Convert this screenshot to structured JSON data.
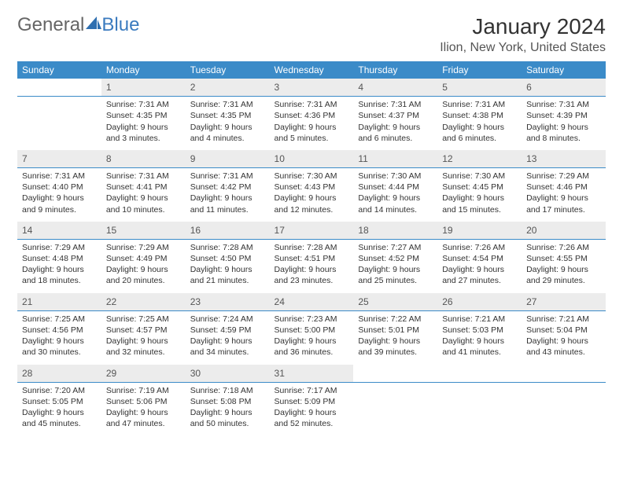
{
  "logo": {
    "text_general": "General",
    "text_blue": "Blue"
  },
  "title": "January 2024",
  "location": "Ilion, New York, United States",
  "colors": {
    "header_bg": "#3b8bc8",
    "header_text": "#ffffff",
    "daynum_bg": "#ececec",
    "rule": "#3b8bc8"
  },
  "day_headers": [
    "Sunday",
    "Monday",
    "Tuesday",
    "Wednesday",
    "Thursday",
    "Friday",
    "Saturday"
  ],
  "weeks": [
    [
      {
        "n": "",
        "sr": "",
        "ss": "",
        "dl": ""
      },
      {
        "n": "1",
        "sr": "Sunrise: 7:31 AM",
        "ss": "Sunset: 4:35 PM",
        "dl": "Daylight: 9 hours and 3 minutes."
      },
      {
        "n": "2",
        "sr": "Sunrise: 7:31 AM",
        "ss": "Sunset: 4:35 PM",
        "dl": "Daylight: 9 hours and 4 minutes."
      },
      {
        "n": "3",
        "sr": "Sunrise: 7:31 AM",
        "ss": "Sunset: 4:36 PM",
        "dl": "Daylight: 9 hours and 5 minutes."
      },
      {
        "n": "4",
        "sr": "Sunrise: 7:31 AM",
        "ss": "Sunset: 4:37 PM",
        "dl": "Daylight: 9 hours and 6 minutes."
      },
      {
        "n": "5",
        "sr": "Sunrise: 7:31 AM",
        "ss": "Sunset: 4:38 PM",
        "dl": "Daylight: 9 hours and 6 minutes."
      },
      {
        "n": "6",
        "sr": "Sunrise: 7:31 AM",
        "ss": "Sunset: 4:39 PM",
        "dl": "Daylight: 9 hours and 8 minutes."
      }
    ],
    [
      {
        "n": "7",
        "sr": "Sunrise: 7:31 AM",
        "ss": "Sunset: 4:40 PM",
        "dl": "Daylight: 9 hours and 9 minutes."
      },
      {
        "n": "8",
        "sr": "Sunrise: 7:31 AM",
        "ss": "Sunset: 4:41 PM",
        "dl": "Daylight: 9 hours and 10 minutes."
      },
      {
        "n": "9",
        "sr": "Sunrise: 7:31 AM",
        "ss": "Sunset: 4:42 PM",
        "dl": "Daylight: 9 hours and 11 minutes."
      },
      {
        "n": "10",
        "sr": "Sunrise: 7:30 AM",
        "ss": "Sunset: 4:43 PM",
        "dl": "Daylight: 9 hours and 12 minutes."
      },
      {
        "n": "11",
        "sr": "Sunrise: 7:30 AM",
        "ss": "Sunset: 4:44 PM",
        "dl": "Daylight: 9 hours and 14 minutes."
      },
      {
        "n": "12",
        "sr": "Sunrise: 7:30 AM",
        "ss": "Sunset: 4:45 PM",
        "dl": "Daylight: 9 hours and 15 minutes."
      },
      {
        "n": "13",
        "sr": "Sunrise: 7:29 AM",
        "ss": "Sunset: 4:46 PM",
        "dl": "Daylight: 9 hours and 17 minutes."
      }
    ],
    [
      {
        "n": "14",
        "sr": "Sunrise: 7:29 AM",
        "ss": "Sunset: 4:48 PM",
        "dl": "Daylight: 9 hours and 18 minutes."
      },
      {
        "n": "15",
        "sr": "Sunrise: 7:29 AM",
        "ss": "Sunset: 4:49 PM",
        "dl": "Daylight: 9 hours and 20 minutes."
      },
      {
        "n": "16",
        "sr": "Sunrise: 7:28 AM",
        "ss": "Sunset: 4:50 PM",
        "dl": "Daylight: 9 hours and 21 minutes."
      },
      {
        "n": "17",
        "sr": "Sunrise: 7:28 AM",
        "ss": "Sunset: 4:51 PM",
        "dl": "Daylight: 9 hours and 23 minutes."
      },
      {
        "n": "18",
        "sr": "Sunrise: 7:27 AM",
        "ss": "Sunset: 4:52 PM",
        "dl": "Daylight: 9 hours and 25 minutes."
      },
      {
        "n": "19",
        "sr": "Sunrise: 7:26 AM",
        "ss": "Sunset: 4:54 PM",
        "dl": "Daylight: 9 hours and 27 minutes."
      },
      {
        "n": "20",
        "sr": "Sunrise: 7:26 AM",
        "ss": "Sunset: 4:55 PM",
        "dl": "Daylight: 9 hours and 29 minutes."
      }
    ],
    [
      {
        "n": "21",
        "sr": "Sunrise: 7:25 AM",
        "ss": "Sunset: 4:56 PM",
        "dl": "Daylight: 9 hours and 30 minutes."
      },
      {
        "n": "22",
        "sr": "Sunrise: 7:25 AM",
        "ss": "Sunset: 4:57 PM",
        "dl": "Daylight: 9 hours and 32 minutes."
      },
      {
        "n": "23",
        "sr": "Sunrise: 7:24 AM",
        "ss": "Sunset: 4:59 PM",
        "dl": "Daylight: 9 hours and 34 minutes."
      },
      {
        "n": "24",
        "sr": "Sunrise: 7:23 AM",
        "ss": "Sunset: 5:00 PM",
        "dl": "Daylight: 9 hours and 36 minutes."
      },
      {
        "n": "25",
        "sr": "Sunrise: 7:22 AM",
        "ss": "Sunset: 5:01 PM",
        "dl": "Daylight: 9 hours and 39 minutes."
      },
      {
        "n": "26",
        "sr": "Sunrise: 7:21 AM",
        "ss": "Sunset: 5:03 PM",
        "dl": "Daylight: 9 hours and 41 minutes."
      },
      {
        "n": "27",
        "sr": "Sunrise: 7:21 AM",
        "ss": "Sunset: 5:04 PM",
        "dl": "Daylight: 9 hours and 43 minutes."
      }
    ],
    [
      {
        "n": "28",
        "sr": "Sunrise: 7:20 AM",
        "ss": "Sunset: 5:05 PM",
        "dl": "Daylight: 9 hours and 45 minutes."
      },
      {
        "n": "29",
        "sr": "Sunrise: 7:19 AM",
        "ss": "Sunset: 5:06 PM",
        "dl": "Daylight: 9 hours and 47 minutes."
      },
      {
        "n": "30",
        "sr": "Sunrise: 7:18 AM",
        "ss": "Sunset: 5:08 PM",
        "dl": "Daylight: 9 hours and 50 minutes."
      },
      {
        "n": "31",
        "sr": "Sunrise: 7:17 AM",
        "ss": "Sunset: 5:09 PM",
        "dl": "Daylight: 9 hours and 52 minutes."
      },
      {
        "n": "",
        "sr": "",
        "ss": "",
        "dl": ""
      },
      {
        "n": "",
        "sr": "",
        "ss": "",
        "dl": ""
      },
      {
        "n": "",
        "sr": "",
        "ss": "",
        "dl": ""
      }
    ]
  ]
}
